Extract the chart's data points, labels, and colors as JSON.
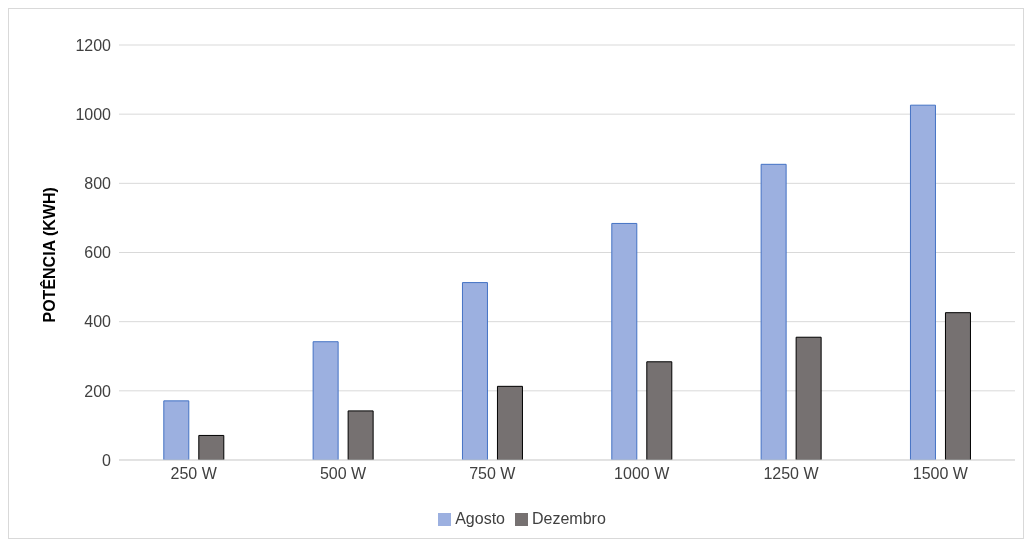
{
  "chart_data": {
    "type": "bar",
    "ylabel": "POTÊNCIA (KWH)",
    "categories": [
      "250 W",
      "500 W",
      "750 W",
      "1000 W",
      "1250 W",
      "1500 W"
    ],
    "series": [
      {
        "name": "Agosto",
        "color": "#9cb0e0",
        "values": [
          171,
          342,
          513,
          684,
          855,
          1026
        ]
      },
      {
        "name": "Dezembro",
        "color": "#767171",
        "values": [
          71,
          142,
          213,
          284,
          355,
          426
        ]
      }
    ],
    "ylim": [
      0,
      1200
    ],
    "yticks": [
      0,
      200,
      400,
      600,
      800,
      1000,
      1200
    ],
    "grid": "y",
    "legend": "bottom"
  }
}
